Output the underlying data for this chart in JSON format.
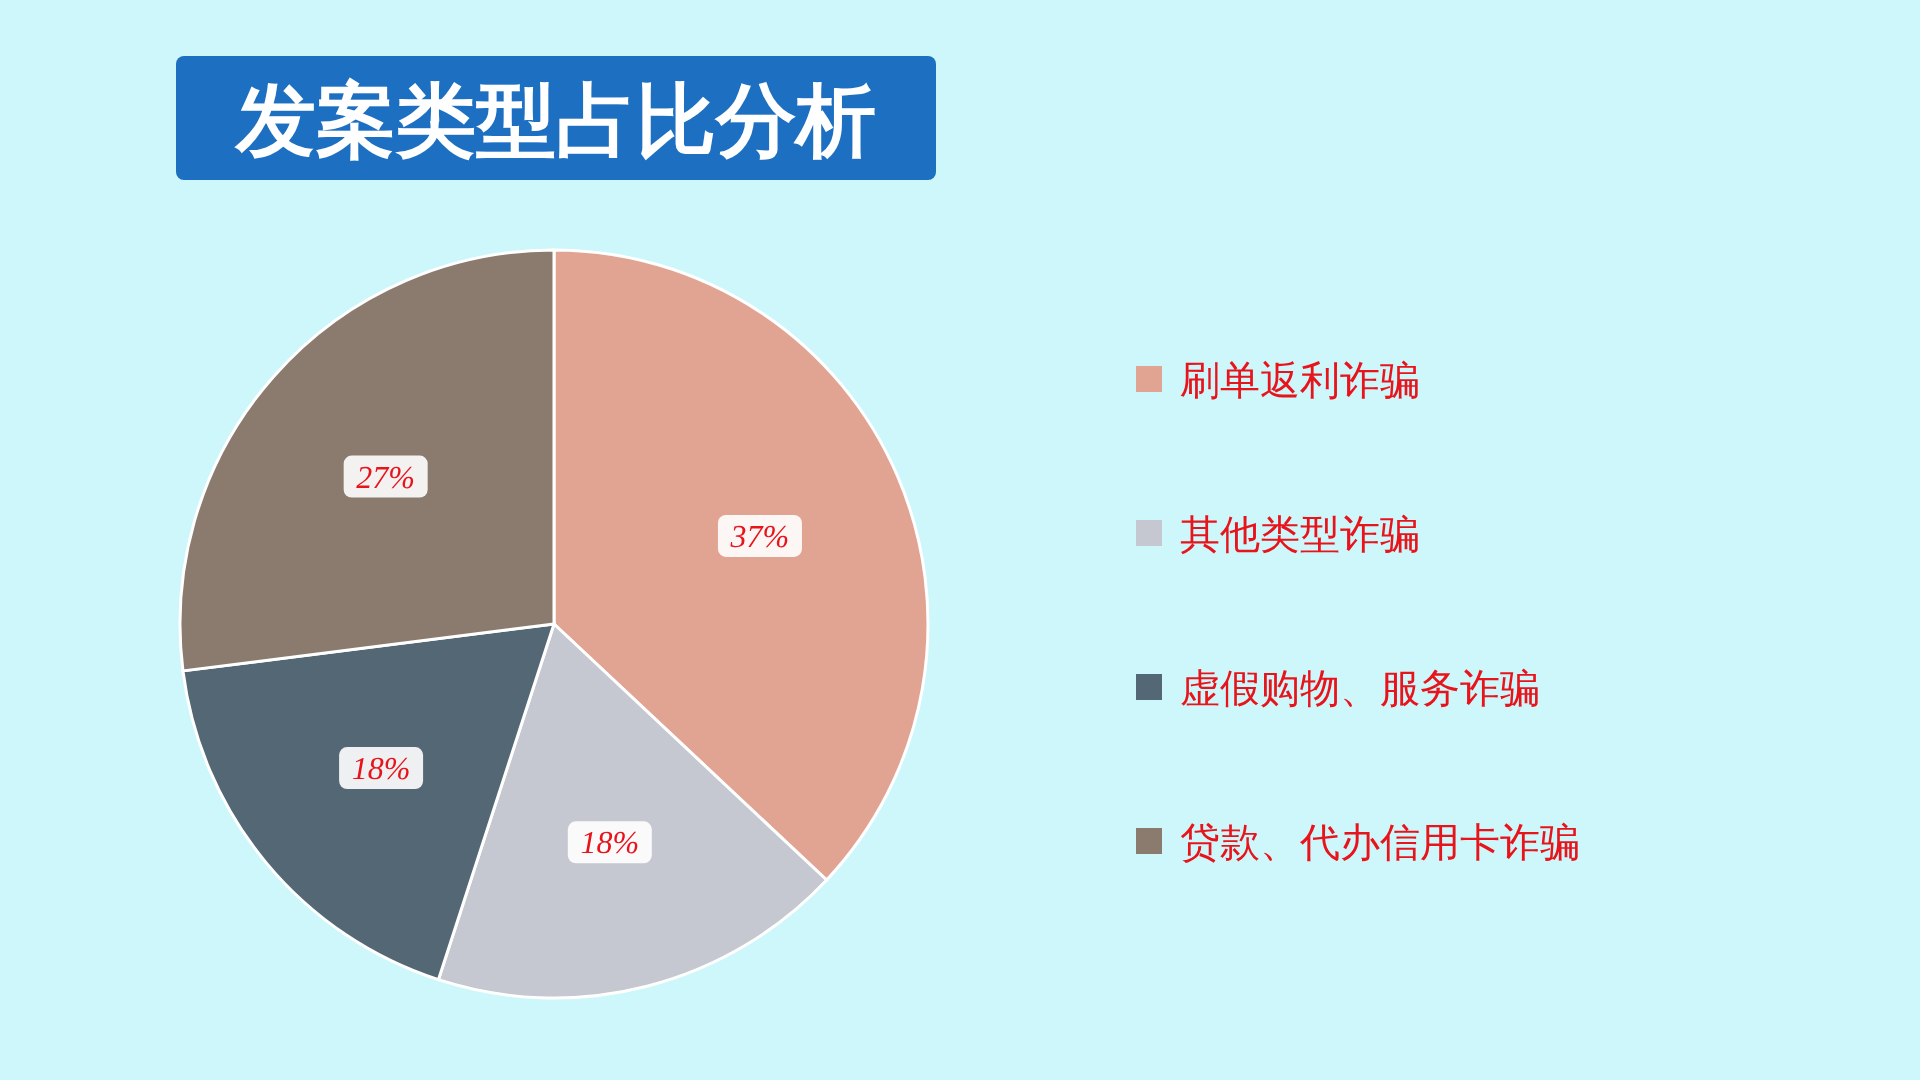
{
  "chart_data": {
    "type": "pie",
    "title": "发案类型占比分析",
    "categories": [
      "刷单返利诈骗",
      "其他类型诈骗",
      "虚假购物、服务诈骗",
      "贷款、代办信用卡诈骗"
    ],
    "values": [
      37,
      18,
      18,
      27
    ],
    "colors": [
      "#e2a492",
      "#c5c7d1",
      "#546774",
      "#8b7b6e"
    ],
    "value_labels": [
      "37%",
      "18%",
      "18%",
      "27%"
    ],
    "legend": "right"
  }
}
